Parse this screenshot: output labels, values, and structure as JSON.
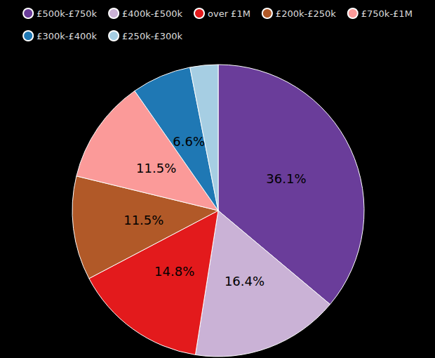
{
  "chart_data": {
    "type": "pie",
    "categories": [
      "£500k-£750k",
      "£400k-£500k",
      "over £1M",
      "£200k-£250k",
      "£750k-£1M",
      "£300k-£400k",
      "£250k-£300k"
    ],
    "values": [
      36.1,
      16.4,
      14.8,
      11.5,
      11.5,
      6.6,
      3.1
    ],
    "value_labels": [
      "36.1%",
      "16.4%",
      "14.8%",
      "11.5%",
      "11.5%",
      "6.6%",
      null
    ],
    "colors": [
      "#6a3d9a",
      "#cab2d6",
      "#e31a1c",
      "#b15928",
      "#fb9a99",
      "#1f78b4",
      "#a6cee3"
    ],
    "data_labels": true,
    "legend": "top"
  }
}
